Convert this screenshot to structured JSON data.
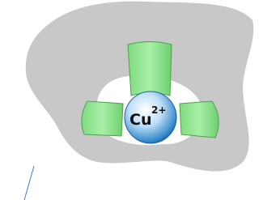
{
  "ion": {
    "symbol": "Cu",
    "charge": "2+"
  }
}
